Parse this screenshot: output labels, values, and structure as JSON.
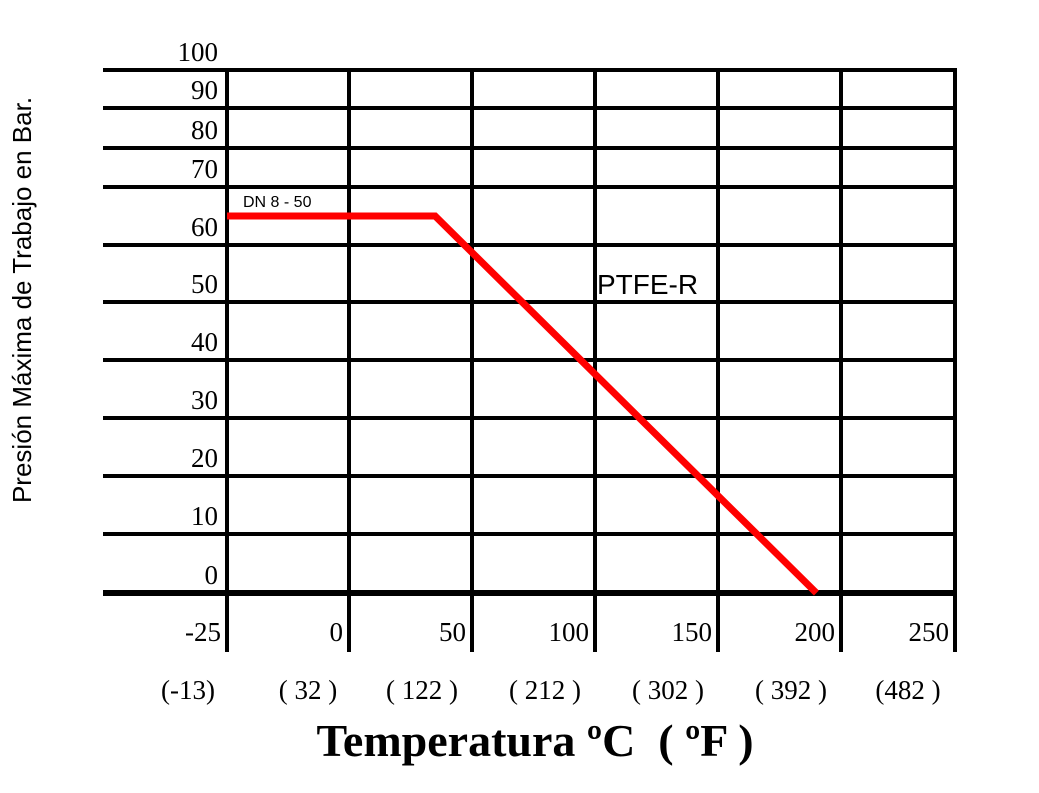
{
  "chart_data": {
    "type": "line",
    "title": "",
    "xlabel": "Temperatura ºC  ( ºF )",
    "ylabel": "Presión Máxima de Trabajo en Bar.",
    "x_ticks": [
      "-25",
      "0",
      "50",
      "100",
      "150",
      "200",
      "250"
    ],
    "x_tick_values": [
      -25,
      0,
      50,
      100,
      150,
      200,
      250
    ],
    "x_ticks_f": [
      "(-13)",
      "( 32 )",
      "( 122 )",
      "( 212 )",
      "( 302 )",
      "( 392 )",
      "(482 )"
    ],
    "y_ticks": [
      "100",
      "90",
      "80",
      "70",
      "60",
      "50",
      "40",
      "30",
      "20",
      "10",
      "0"
    ],
    "y_tick_values": [
      100,
      90,
      80,
      70,
      60,
      50,
      40,
      30,
      20,
      10,
      0
    ],
    "xlim": [
      -25,
      250
    ],
    "ylim": [
      0,
      100
    ],
    "grid": true,
    "series": [
      {
        "name": "PTFE-R",
        "color": "#ff0000",
        "x": [
          -25,
          35,
          190
        ],
        "y": [
          65,
          65,
          0
        ]
      }
    ],
    "annotations": [
      "DN 8 - 50",
      "PTFE-R"
    ]
  }
}
